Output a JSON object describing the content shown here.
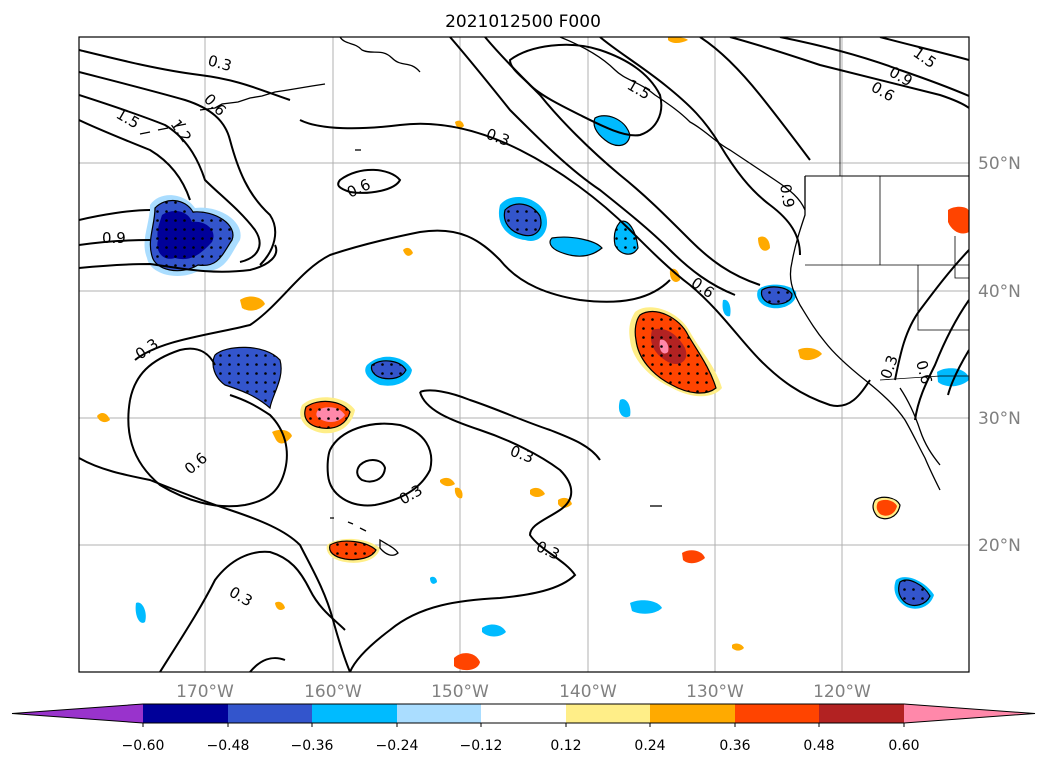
{
  "title": "2021012500 F000",
  "map": {
    "lon_range": [
      -180,
      -110
    ],
    "lat_range": [
      10,
      60
    ],
    "gridlines": true,
    "lat_labels": [
      "50°N",
      "40°N",
      "30°N",
      "20°N"
    ],
    "lat_values": [
      50,
      40,
      30,
      20
    ],
    "lon_labels": [
      "170°W",
      "160°W",
      "150°W",
      "140°W",
      "130°W",
      "120°W"
    ],
    "lon_values": [
      -170,
      -160,
      -150,
      -140,
      -130,
      -120
    ],
    "contour_labels": [
      "0.3",
      "0.6",
      "1.5",
      "1.2",
      "0.9",
      "0.3",
      "0.6",
      "0.3",
      "1.5",
      "0.3",
      "0.6",
      "0.6",
      "0.3",
      "0.3",
      "0.3",
      "0.3",
      "1.5",
      "0.9",
      "0.6",
      "0.9",
      "0.6"
    ]
  },
  "colorbar": {
    "ticks": [
      "−0.60",
      "−0.48",
      "−0.36",
      "−0.24",
      "−0.12",
      "0.12",
      "0.24",
      "0.36",
      "0.48",
      "0.60"
    ],
    "colors": [
      "#9933cc",
      "#000099",
      "#3355cc",
      "#00bbff",
      "#aaddff",
      "#ffffff",
      "#ffee88",
      "#ffaa00",
      "#ff4400",
      "#b22222",
      "#ff88aa"
    ]
  }
}
